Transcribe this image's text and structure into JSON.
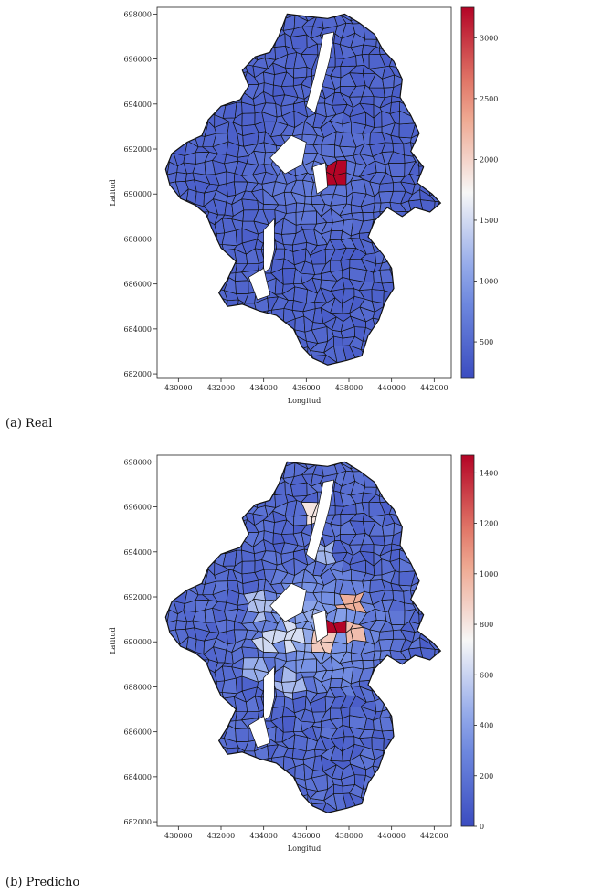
{
  "panels": [
    {
      "caption": "(a) Real",
      "xlabel": "Longitud",
      "ylabel": "Latitud",
      "x_ticks": [
        "430000",
        "432000",
        "434000",
        "436000",
        "438000",
        "440000",
        "442000"
      ],
      "y_ticks": [
        "682000",
        "684000",
        "686000",
        "688000",
        "690000",
        "692000",
        "694000",
        "696000",
        "698000"
      ],
      "colorbar": {
        "min": 200,
        "max": 3250,
        "ticks": [
          500,
          1000,
          1500,
          2000,
          2500,
          3000
        ]
      }
    },
    {
      "caption": "(b) Predicho",
      "xlabel": "Longitud",
      "ylabel": "Latitud",
      "x_ticks": [
        "430000",
        "432000",
        "434000",
        "436000",
        "438000",
        "440000",
        "442000"
      ],
      "y_ticks": [
        "682000",
        "684000",
        "686000",
        "688000",
        "690000",
        "692000",
        "694000",
        "696000",
        "698000"
      ],
      "colorbar": {
        "min": 0,
        "max": 1470,
        "ticks": [
          0,
          200,
          400,
          600,
          800,
          1000,
          1200,
          1400
        ]
      }
    }
  ],
  "colors": {
    "low": "#3b4cc0",
    "mid": "#f7f7f7",
    "high": "#b40426",
    "hot": "#c8102e",
    "border": "#111111"
  },
  "chart_data": [
    {
      "type": "heatmap",
      "panel": "a",
      "xlim": [
        429000,
        442800
      ],
      "ylim": [
        681800,
        698300
      ],
      "scale": [
        200,
        3250
      ],
      "highlight_zones": [
        {
          "x": 437400,
          "y": 690800,
          "value": 3250
        },
        {
          "x": 436200,
          "y": 690500,
          "value": 560
        },
        {
          "x": 434800,
          "y": 690200,
          "value": 520
        }
      ]
    },
    {
      "type": "heatmap",
      "panel": "b",
      "xlim": [
        429000,
        442800
      ],
      "ylim": [
        681800,
        698300
      ],
      "scale": [
        0,
        1470
      ],
      "highlight_zones": [
        {
          "x": 437300,
          "y": 690700,
          "value": 1470
        },
        {
          "x": 438100,
          "y": 691700,
          "value": 1000
        },
        {
          "x": 438300,
          "y": 690500,
          "value": 950
        },
        {
          "x": 436700,
          "y": 690000,
          "value": 900
        },
        {
          "x": 436500,
          "y": 695600,
          "value": 800
        },
        {
          "x": 434300,
          "y": 690100,
          "value": 620
        },
        {
          "x": 435400,
          "y": 690200,
          "value": 640
        },
        {
          "x": 433800,
          "y": 691600,
          "value": 520
        },
        {
          "x": 435200,
          "y": 688100,
          "value": 500
        },
        {
          "x": 433600,
          "y": 688600,
          "value": 450
        },
        {
          "x": 436900,
          "y": 693800,
          "value": 480
        }
      ]
    }
  ]
}
